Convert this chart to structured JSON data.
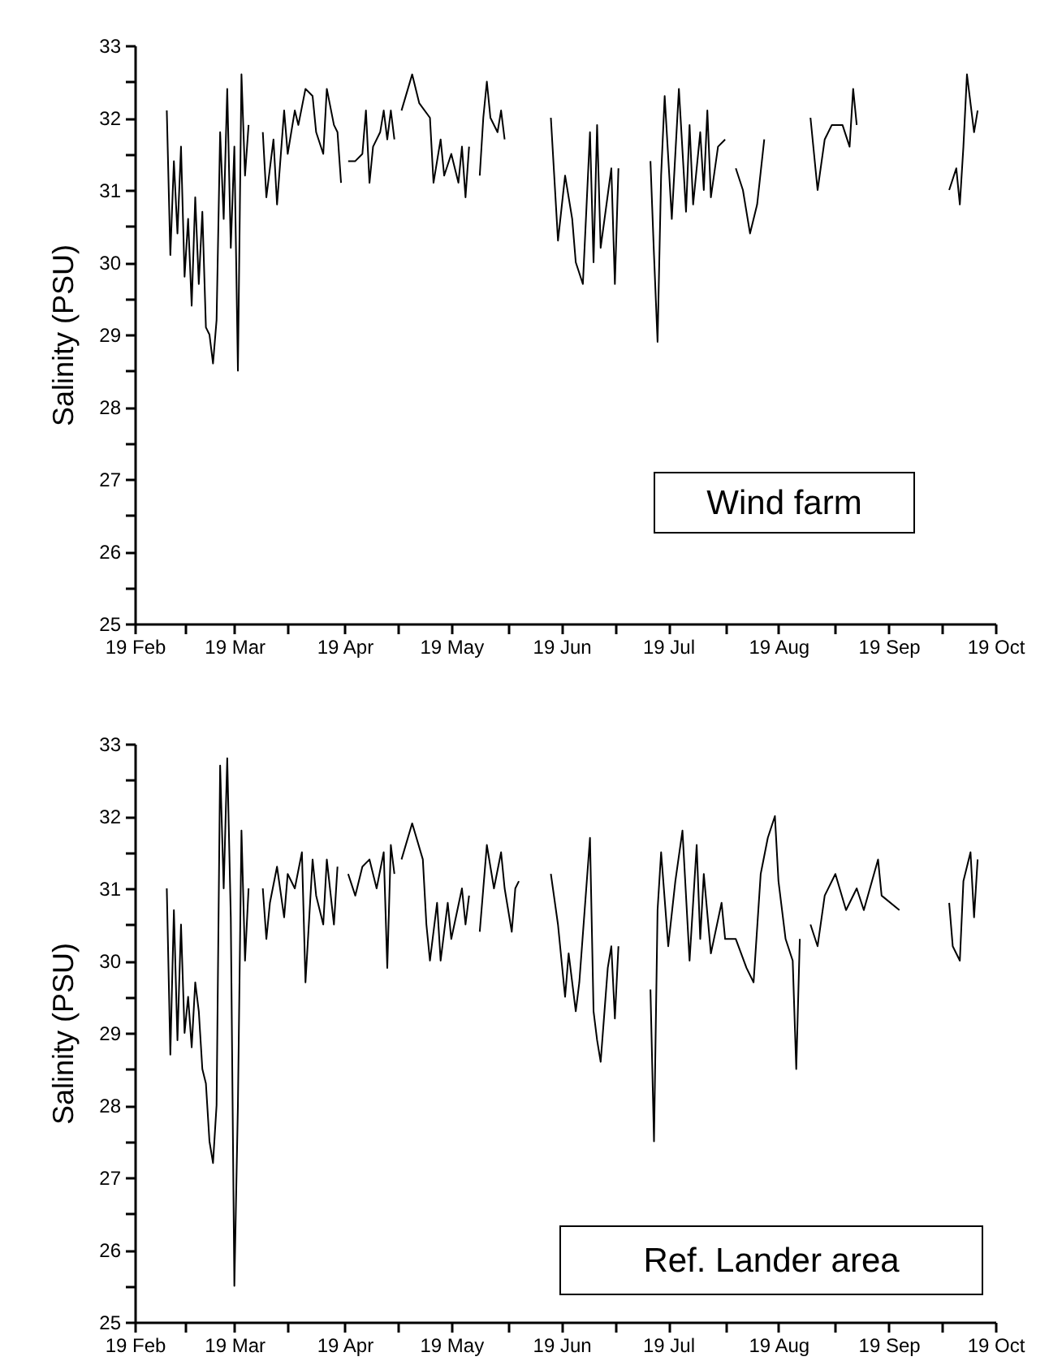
{
  "chart_data": [
    {
      "type": "line",
      "ylabel": "Salinity (PSU)",
      "annotations": [
        "Wind farm"
      ],
      "grid": false,
      "marker": "none",
      "line_style": "solid",
      "xlim": [
        "--02-19",
        "--10-19"
      ],
      "xticks": [
        {
          "value": "--02-19",
          "label": "19 Feb"
        },
        {
          "value": "--03-05",
          "label": null
        },
        {
          "value": "--03-19",
          "label": "19 Mar"
        },
        {
          "value": "--04-03",
          "label": null
        },
        {
          "value": "--04-19",
          "label": "19 Apr"
        },
        {
          "value": "--05-04",
          "label": null
        },
        {
          "value": "--05-19",
          "label": "19 May"
        },
        {
          "value": "--06-04",
          "label": null
        },
        {
          "value": "--06-19",
          "label": "19 Jun"
        },
        {
          "value": "--07-04",
          "label": null
        },
        {
          "value": "--07-19",
          "label": "19 Jul"
        },
        {
          "value": "--08-04",
          "label": null
        },
        {
          "value": "--08-19",
          "label": "19 Aug"
        },
        {
          "value": "--09-04",
          "label": null
        },
        {
          "value": "--09-19",
          "label": "19 Sep"
        },
        {
          "value": "--10-04",
          "label": null
        },
        {
          "value": "--10-19",
          "label": "19 Oct"
        }
      ],
      "ylim": [
        25,
        33
      ],
      "yticks": [
        25,
        {
          "value": 25.5,
          "label": null
        },
        26,
        {
          "value": 26.5,
          "label": null
        },
        27,
        {
          "value": 27.5,
          "label": null
        },
        28,
        {
          "value": 28.5,
          "label": null
        },
        29,
        {
          "value": 29.5,
          "label": null
        },
        30,
        {
          "value": 30.5,
          "label": null
        },
        31,
        {
          "value": 31.5,
          "label": null
        },
        32,
        {
          "value": 32.5,
          "label": null
        },
        33
      ],
      "series": [
        {
          "color": "#000000",
          "x": [
            "--02-28",
            "--03-01",
            "--03-02",
            "--03-03",
            "--03-04",
            "--03-05",
            "--03-06",
            "--03-07",
            "--03-08",
            "--03-09",
            "--03-10",
            "--03-11",
            "--03-12",
            "--03-13",
            "--03-14",
            "--03-15",
            "--03-16",
            "--03-17",
            "--03-18",
            "--03-19",
            "--03-20",
            "--03-21",
            "--03-22",
            "--03-23",
            "--03-25",
            "--03-27",
            "--03-28",
            "--03-29",
            "--03-30",
            "--03-31",
            "--04-02",
            "--04-03",
            "--04-05",
            "--04-06",
            "--04-08",
            "--04-10",
            "--04-11",
            "--04-13",
            "--04-14",
            "--04-16",
            "--04-17",
            "--04-18",
            "--04-19",
            "--04-20",
            "--04-22",
            "--04-24",
            "--04-25",
            "--04-26",
            "--04-27",
            "--04-29",
            "--04-30",
            "--05-01",
            "--05-02",
            "--05-03",
            "--05-04",
            "--05-05",
            "--05-08",
            "--05-10",
            "--05-13",
            "--05-14",
            "--05-16",
            "--05-17",
            "--05-19",
            "--05-21",
            "--05-22",
            "--05-23",
            "--05-24",
            "--05-25",
            "--05-27",
            "--05-28",
            "--05-29",
            "--05-30",
            "--06-01",
            "--06-02",
            "--06-03",
            "--06-10",
            "--06-16",
            "--06-18",
            "--06-20",
            "--06-22",
            "--06-23",
            "--06-25",
            "--06-27",
            "--06-28",
            "--06-29",
            "--06-30",
            "--07-03",
            "--07-04",
            "--07-05",
            "--07-10",
            "--07-14",
            "--07-15",
            "--07-16",
            "--07-17",
            "--07-18",
            "--07-20",
            "--07-22",
            "--07-24",
            "--07-25",
            "--07-26",
            "--07-28",
            "--07-29",
            "--07-30",
            "--07-31",
            "--08-02",
            "--08-04",
            "--08-06",
            "--08-07",
            "--08-09",
            "--08-11",
            "--08-13",
            "--08-15",
            "--08-20",
            "--08-28",
            "--08-30",
            "--09-01",
            "--09-03",
            "--09-06",
            "--09-08",
            "--09-09",
            "--09-10",
            "--09-25",
            "--10-06",
            "--10-08",
            "--10-09",
            "--10-10",
            "--10-11",
            "--10-13",
            "--10-14"
          ],
          "values": [
            32.1,
            30.1,
            31.4,
            30.4,
            31.6,
            29.8,
            30.6,
            29.4,
            30.9,
            29.7,
            30.7,
            29.1,
            29.0,
            28.6,
            29.2,
            31.8,
            30.6,
            32.4,
            30.2,
            31.6,
            28.5,
            32.6,
            31.2,
            31.9,
            null,
            31.8,
            30.9,
            31.3,
            31.7,
            30.8,
            32.1,
            31.5,
            32.1,
            31.9,
            32.4,
            32.3,
            31.8,
            31.5,
            32.4,
            31.9,
            31.8,
            31.1,
            null,
            31.4,
            31.4,
            31.5,
            32.1,
            31.1,
            31.6,
            31.8,
            32.1,
            31.7,
            32.1,
            31.7,
            null,
            32.1,
            32.6,
            32.2,
            32.0,
            31.1,
            31.7,
            31.2,
            31.5,
            31.1,
            31.6,
            30.9,
            31.6,
            null,
            31.2,
            32.0,
            32.5,
            32.0,
            31.8,
            32.1,
            31.7,
            null,
            32.0,
            30.3,
            31.2,
            30.6,
            30.0,
            29.7,
            31.8,
            30.0,
            31.9,
            30.2,
            31.3,
            29.7,
            31.3,
            null,
            31.4,
            30.1,
            28.9,
            31.2,
            32.3,
            30.6,
            32.4,
            30.7,
            31.9,
            30.8,
            31.8,
            31.0,
            32.1,
            30.9,
            31.6,
            31.7,
            null,
            31.3,
            31.0,
            30.4,
            30.8,
            31.7,
            null,
            32.0,
            31.0,
            31.7,
            31.9,
            31.9,
            31.6,
            32.4,
            31.9,
            null,
            31.0,
            31.3,
            30.8,
            31.6,
            32.6,
            31.8,
            32.1
          ]
        }
      ]
    },
    {
      "type": "line",
      "ylabel": "Salinity (PSU)",
      "annotations": [
        "Ref. Lander area"
      ],
      "grid": false,
      "marker": "none",
      "line_style": "solid",
      "xlim": [
        "--02-19",
        "--10-19"
      ],
      "xticks": [
        {
          "value": "--02-19",
          "label": "19 Feb"
        },
        {
          "value": "--03-05",
          "label": null
        },
        {
          "value": "--03-19",
          "label": "19 Mar"
        },
        {
          "value": "--04-03",
          "label": null
        },
        {
          "value": "--04-19",
          "label": "19 Apr"
        },
        {
          "value": "--05-04",
          "label": null
        },
        {
          "value": "--05-19",
          "label": "19 May"
        },
        {
          "value": "--06-04",
          "label": null
        },
        {
          "value": "--06-19",
          "label": "19 Jun"
        },
        {
          "value": "--07-04",
          "label": null
        },
        {
          "value": "--07-19",
          "label": "19 Jul"
        },
        {
          "value": "--08-04",
          "label": null
        },
        {
          "value": "--08-19",
          "label": "19 Aug"
        },
        {
          "value": "--09-04",
          "label": null
        },
        {
          "value": "--09-19",
          "label": "19 Sep"
        },
        {
          "value": "--10-04",
          "label": null
        },
        {
          "value": "--10-19",
          "label": "19 Oct"
        }
      ],
      "ylim": [
        25,
        33
      ],
      "yticks": [
        25,
        {
          "value": 25.5,
          "label": null
        },
        26,
        {
          "value": 26.5,
          "label": null
        },
        27,
        {
          "value": 27.5,
          "label": null
        },
        28,
        {
          "value": 28.5,
          "label": null
        },
        29,
        {
          "value": 29.5,
          "label": null
        },
        30,
        {
          "value": 30.5,
          "label": null
        },
        31,
        {
          "value": 31.5,
          "label": null
        },
        32,
        {
          "value": 32.5,
          "label": null
        },
        33
      ],
      "series": [
        {
          "color": "#000000",
          "x": [
            "--02-28",
            "--03-01",
            "--03-02",
            "--03-03",
            "--03-04",
            "--03-05",
            "--03-06",
            "--03-07",
            "--03-08",
            "--03-09",
            "--03-10",
            "--03-11",
            "--03-12",
            "--03-13",
            "--03-14",
            "--03-15",
            "--03-16",
            "--03-17",
            "--03-18",
            "--03-19",
            "--03-20",
            "--03-21",
            "--03-22",
            "--03-23",
            "--03-25",
            "--03-27",
            "--03-28",
            "--03-29",
            "--03-31",
            "--04-02",
            "--04-03",
            "--04-05",
            "--04-07",
            "--04-08",
            "--04-10",
            "--04-11",
            "--04-13",
            "--04-14",
            "--04-16",
            "--04-17",
            "--04-19",
            "--04-20",
            "--04-22",
            "--04-24",
            "--04-26",
            "--04-28",
            "--04-30",
            "--05-01",
            "--05-02",
            "--05-03",
            "--05-04",
            "--05-05",
            "--05-08",
            "--05-11",
            "--05-12",
            "--05-13",
            "--05-15",
            "--05-16",
            "--05-18",
            "--05-19",
            "--05-22",
            "--05-23",
            "--05-24",
            "--05-25",
            "--05-27",
            "--05-28",
            "--05-29",
            "--05-31",
            "--06-02",
            "--06-03",
            "--06-05",
            "--06-06",
            "--06-07",
            "--06-12",
            "--06-16",
            "--06-18",
            "--06-20",
            "--06-21",
            "--06-23",
            "--06-24",
            "--06-27",
            "--06-28",
            "--06-29",
            "--06-30",
            "--07-02",
            "--07-03",
            "--07-04",
            "--07-05",
            "--07-10",
            "--07-14",
            "--07-15",
            "--07-16",
            "--07-17",
            "--07-19",
            "--07-21",
            "--07-23",
            "--07-25",
            "--07-27",
            "--07-28",
            "--07-29",
            "--07-31",
            "--08-03",
            "--08-04",
            "--08-07",
            "--08-10",
            "--08-12",
            "--08-14",
            "--08-16",
            "--08-18",
            "--08-19",
            "--08-21",
            "--08-23",
            "--08-24",
            "--08-25",
            "--08-27",
            "--08-28",
            "--08-30",
            "--09-01",
            "--09-04",
            "--09-07",
            "--09-10",
            "--09-12",
            "--09-16",
            "--09-17",
            "--09-22",
            "--09-30",
            "--10-06",
            "--10-07",
            "--10-09",
            "--10-10",
            "--10-12",
            "--10-13",
            "--10-14"
          ],
          "values": [
            31.0,
            28.7,
            30.7,
            28.9,
            30.5,
            29.0,
            29.5,
            28.8,
            29.7,
            29.3,
            28.5,
            28.3,
            27.5,
            27.2,
            28.0,
            32.7,
            31.0,
            32.8,
            30.6,
            25.5,
            28.0,
            31.8,
            30.0,
            31.0,
            null,
            31.0,
            30.3,
            30.8,
            31.3,
            30.6,
            31.2,
            31.0,
            31.5,
            29.7,
            31.4,
            30.9,
            30.5,
            31.4,
            30.5,
            31.3,
            null,
            31.2,
            30.9,
            31.3,
            31.4,
            31.0,
            31.5,
            29.9,
            31.6,
            31.2,
            null,
            31.4,
            31.9,
            31.4,
            30.5,
            30.0,
            30.8,
            30.0,
            30.8,
            30.3,
            31.0,
            30.5,
            30.9,
            null,
            30.4,
            31.0,
            31.6,
            31.0,
            31.5,
            31.0,
            30.4,
            31.0,
            31.1,
            null,
            31.2,
            30.5,
            29.5,
            30.1,
            29.3,
            29.7,
            31.7,
            29.3,
            28.9,
            28.6,
            29.9,
            30.2,
            29.2,
            30.2,
            null,
            29.6,
            27.5,
            30.7,
            31.5,
            30.2,
            31.1,
            31.8,
            30.0,
            31.6,
            30.3,
            31.2,
            30.1,
            30.8,
            30.3,
            30.3,
            29.9,
            29.7,
            31.2,
            31.7,
            32.0,
            31.1,
            30.3,
            30.0,
            28.5,
            30.3,
            null,
            30.5,
            30.2,
            30.9,
            31.2,
            30.7,
            31.0,
            30.7,
            31.4,
            30.9,
            30.7,
            null,
            30.8,
            30.2,
            30.0,
            31.1,
            31.5,
            30.6,
            31.4
          ]
        }
      ]
    }
  ]
}
